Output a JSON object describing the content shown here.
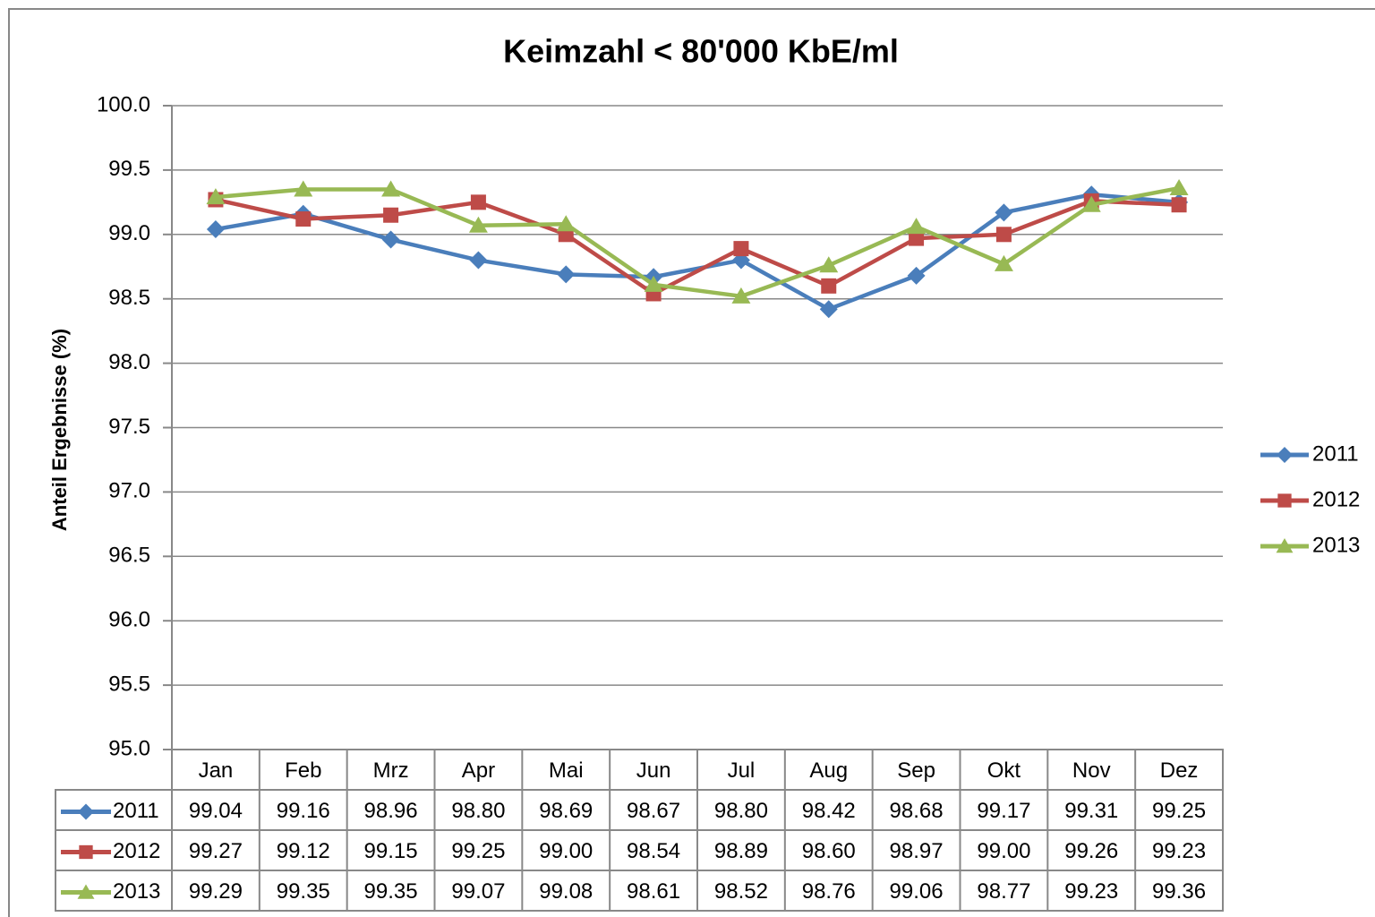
{
  "chart_data": {
    "type": "line",
    "title": "Keimzahl < 80'000 KbE/ml",
    "y_label": "Anteil Ergebnisse (%)",
    "categories": [
      "Jan",
      "Feb",
      "Mrz",
      "Apr",
      "Mai",
      "Jun",
      "Jul",
      "Aug",
      "Sep",
      "Okt",
      "Nov",
      "Dez"
    ],
    "series": [
      {
        "name": "2011",
        "color": "#4a7ebb",
        "marker": "diamond",
        "values": [
          99.04,
          99.16,
          98.96,
          98.8,
          98.69,
          98.67,
          98.8,
          98.42,
          98.68,
          99.17,
          99.31,
          99.25
        ],
        "value_labels": [
          "99.04",
          "99.16",
          "98.96",
          "98.80",
          "98.69",
          "98.67",
          "98.80",
          "98.42",
          "98.68",
          "99.17",
          "99.31",
          "99.25"
        ]
      },
      {
        "name": "2012",
        "color": "#be4b48",
        "marker": "square",
        "values": [
          99.27,
          99.12,
          99.15,
          99.25,
          99,
          98.54,
          98.89,
          98.6,
          98.97,
          99,
          99.26,
          99.23
        ],
        "value_labels": [
          "99.27",
          "99.12",
          "99.15",
          "99.25",
          "99.00",
          "98.54",
          "98.89",
          "98.60",
          "98.97",
          "99.00",
          "99.26",
          "99.23"
        ]
      },
      {
        "name": "2013",
        "color": "#98b954",
        "marker": "triangle",
        "values": [
          99.29,
          99.35,
          99.35,
          99.07,
          99.08,
          98.61,
          98.52,
          98.76,
          99.06,
          98.77,
          99.23,
          99.36
        ],
        "value_labels": [
          "99.29",
          "99.35",
          "99.35",
          "99.07",
          "99.08",
          "98.61",
          "98.52",
          "98.76",
          "99.06",
          "98.77",
          "99.23",
          "99.36"
        ]
      }
    ],
    "ylim": [
      95,
      100
    ],
    "yticks": [
      {
        "value": 95,
        "label": "95.0"
      },
      95.5,
      {
        "value": 96,
        "label": "96.0"
      },
      96.5,
      {
        "value": 97,
        "label": "97.0"
      },
      97.5,
      {
        "value": 98,
        "label": "98.0"
      },
      98.5,
      {
        "value": 99,
        "label": "99.0"
      },
      99.5,
      {
        "value": 100,
        "label": "100.0"
      }
    ],
    "grid": true,
    "legend": "right"
  }
}
